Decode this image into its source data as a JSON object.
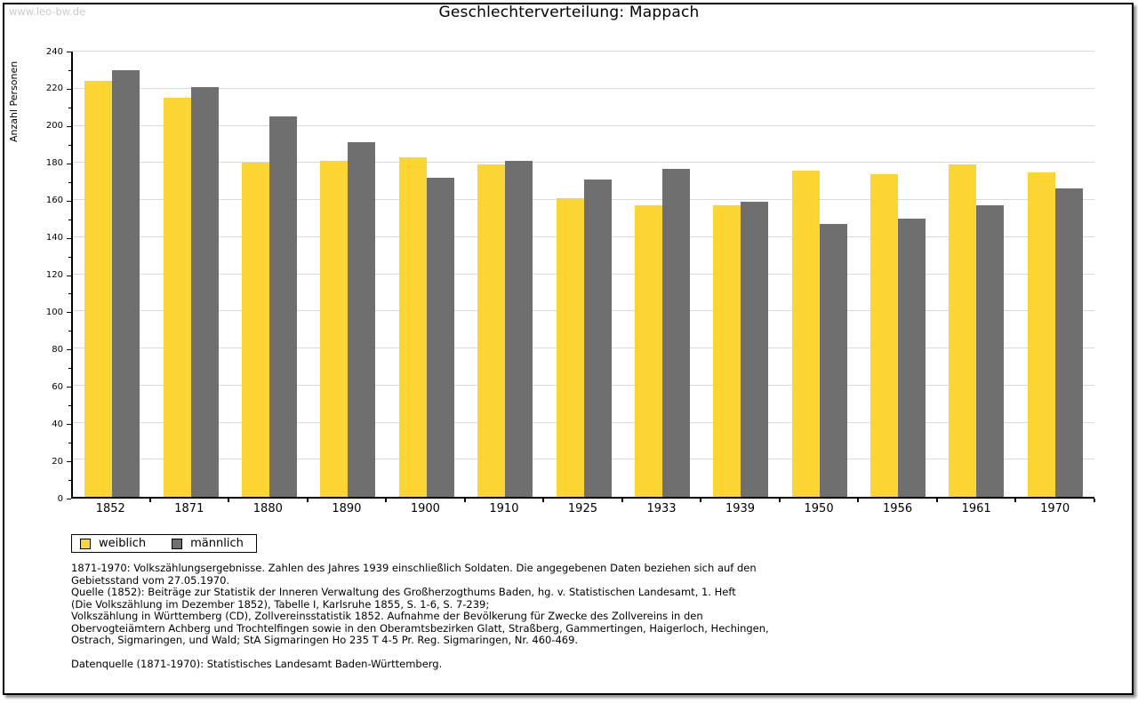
{
  "page": {
    "watermark": "www.leo-bw.de",
    "title": "Geschlechterverteilung: Mappach"
  },
  "chart_data": {
    "type": "bar",
    "title": "Geschlechterverteilung: Mappach",
    "xlabel": "",
    "ylabel": "Anzahl Personen",
    "ylim": [
      0,
      240
    ],
    "ytick_step": 20,
    "ytick_minor_step": 10,
    "grid": "horizontal",
    "legend_position": "bottom-left",
    "categories": [
      "1852",
      "1871",
      "1880",
      "1890",
      "1900",
      "1910",
      "1925",
      "1933",
      "1939",
      "1950",
      "1956",
      "1961",
      "1970"
    ],
    "series": [
      {
        "name": "weiblich",
        "color": "#FCD532",
        "values": [
          224,
          215,
          180,
          181,
          183,
          179,
          161,
          157,
          157,
          176,
          174,
          179,
          175
        ]
      },
      {
        "name": "männlich",
        "color": "#6F6F6F",
        "values": [
          230,
          221,
          205,
          191,
          172,
          181,
          171,
          177,
          159,
          147,
          150,
          157,
          166
        ]
      }
    ]
  },
  "footer": {
    "lines": [
      "1871-1970: Volkszählungsergebnisse. Zahlen des Jahres 1939 einschließlich Soldaten. Die angegebenen Daten beziehen sich auf den",
      "Gebietsstand vom 27.05.1970.",
      "Quelle (1852): Beiträge zur Statistik der Inneren Verwaltung des Großherzogthums Baden, hg. v. Statistischen Landesamt, 1. Heft",
      "(Die Volkszählung im Dezember 1852), Tabelle I, Karlsruhe 1855, S. 1-6, S. 7-239;",
      "Volkszählung in Württemberg (CD), Zollvereinsstatistik 1852. Aufnahme der Bevölkerung für Zwecke des Zollvereins in den",
      "Obervogteiämtern Achberg und Trochtelfingen sowie in den Oberamtsbezirken Glatt, Straßberg, Gammertingen, Haigerloch, Hechingen,",
      "Ostrach, Sigmaringen, und Wald; StA Sigmaringen Ho 235 T 4-5 Pr. Reg. Sigmaringen, Nr. 460-469."
    ],
    "datasource": "Datenquelle (1871-1970): Statistisches Landesamt Baden-Württemberg."
  },
  "colors": {
    "gridline": "#DADADA",
    "axis": "#000000",
    "watermark": "#CBCBCB"
  }
}
